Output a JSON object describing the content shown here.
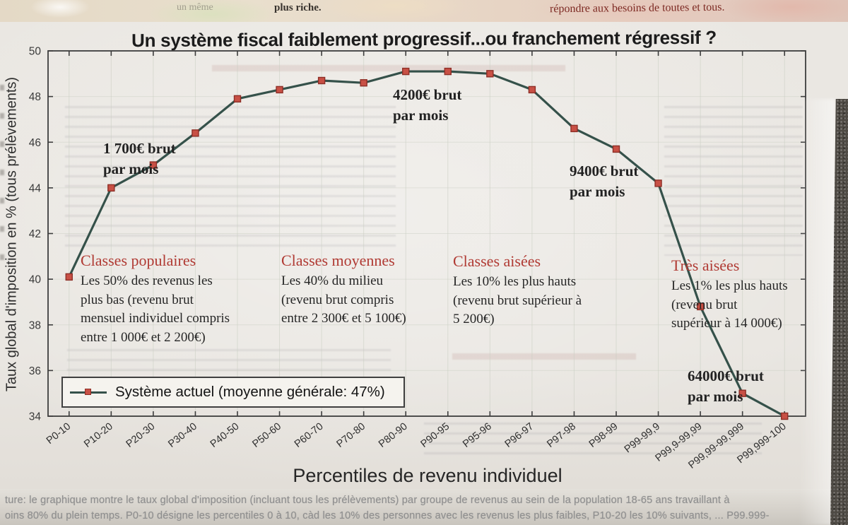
{
  "page": {
    "top_banner": {
      "fragment_left_faint": "un même",
      "fragment_left": "plus riche.",
      "fragment_right": "répondre aux besoins de toutes et tous."
    },
    "caption_line1": "ture: le graphique montre le taux global d'imposition (incluant tous les prélèvements) par groupe de revenus au sein de la population 18-65 ans travaillant à",
    "caption_line2": "oins 80% du plein temps. P0-10 désigne les percentiles 0 à 10, càd les 10% des personnes avec les revenus les plus faibles, P10-20 les 10% suivants, ... P99.999-"
  },
  "chart_data": {
    "type": "line",
    "title": "Un système fiscal faiblement progressif...ou franchement régressif ?",
    "xlabel": "Percentiles de revenu individuel",
    "ylabel": "Taux global d'imposition en % (tous prélèvements)",
    "ylim": [
      34,
      50
    ],
    "ytick_step": 2,
    "grid": true,
    "legend": {
      "label": "Système actuel (moyenne générale: 47%)",
      "position": "lower-left"
    },
    "categories": [
      "P0-10",
      "P10-20",
      "P20-30",
      "P30-40",
      "P40-50",
      "P50-60",
      "P60-70",
      "P70-80",
      "P80-90",
      "P90-95",
      "P95-96",
      "P96-97",
      "P97-98",
      "P98-99",
      "P99-99,9",
      "P99,9-99,99",
      "P99,99-99,999",
      "P99,999-100"
    ],
    "series": [
      {
        "name": "Système actuel",
        "values": [
          40.1,
          44.0,
          45.0,
          46.4,
          47.9,
          48.3,
          48.7,
          48.6,
          49.1,
          49.1,
          49.0,
          48.3,
          46.6,
          45.7,
          44.2,
          38.8,
          35.0,
          34.0
        ]
      }
    ],
    "annotations": [
      {
        "line1": "1 700€ brut",
        "line2": "par mois",
        "target": "P20-30"
      },
      {
        "line1": "4200€ brut",
        "line2": "par mois",
        "target": "P80-90"
      },
      {
        "line1": "9400€ brut",
        "line2": "par mois",
        "target": "P98-99"
      },
      {
        "line1": "64000€ brut",
        "line2": "par mois",
        "target": "P99,99-99,999"
      }
    ],
    "class_notes": [
      {
        "heading": "Classes populaires",
        "lines": [
          "Les 50% des revenus les",
          "plus bas (revenu brut",
          "mensuel individuel compris",
          "entre 1 000€ et 2 200€)"
        ]
      },
      {
        "heading": "Classes moyennes",
        "lines": [
          "Les 40% du milieu",
          "(revenu brut compris",
          "entre 2 300€ et 5 100€)"
        ]
      },
      {
        "heading": "Classes aisées",
        "lines": [
          "Les 10% les plus hauts",
          "(revenu brut supérieur à",
          "5 200€)"
        ]
      },
      {
        "heading": "Très aisées",
        "lines": [
          "Les 1% les plus hauts",
          "(revenu brut",
          "supérieur à 14 000€)"
        ]
      }
    ],
    "colors": {
      "line": "#35514a",
      "marker_fill": "#c85045",
      "marker_edge": "#8e2f27",
      "class_heading": "#b03a33",
      "frame": "#3d3d3d",
      "grid": "#c9cec2"
    }
  }
}
